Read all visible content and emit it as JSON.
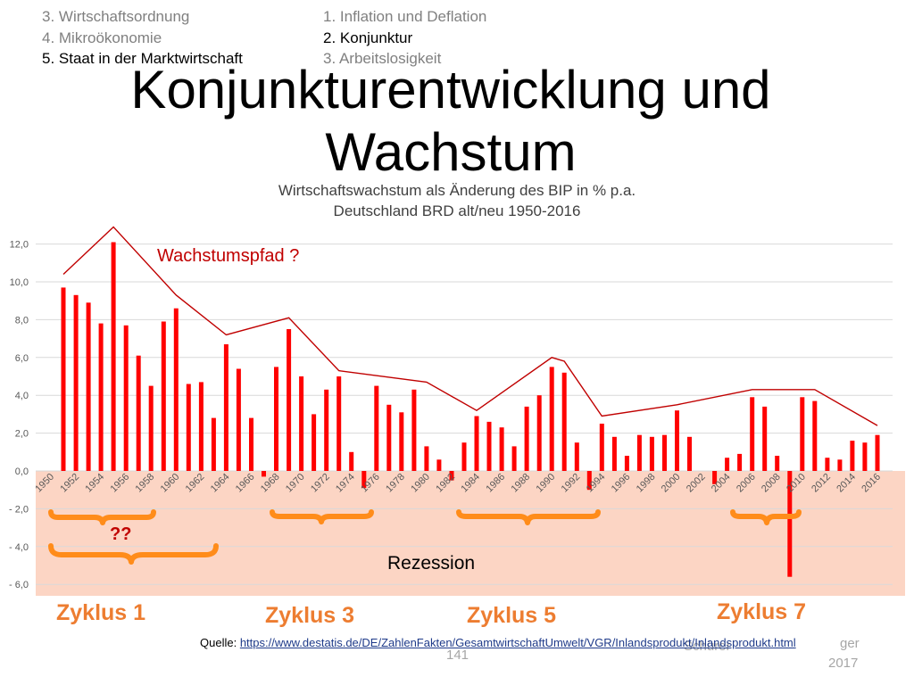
{
  "nav": {
    "left": [
      "3. Wirtschaftsordnung",
      "4. Mikroökonomie",
      "5. Staat in der Marktwirtschaft"
    ],
    "left_active": 2,
    "right": [
      "1. Inflation und Deflation",
      "2. Konjunktur",
      "3. Arbeitslosigkeit"
    ],
    "right_active": 1
  },
  "page_title": "Konjunkturentwicklung und Wachstum",
  "annotations": {
    "growth_path": "Wachstumspfad ?",
    "question": "??",
    "recession": "Rezession",
    "cycles": [
      "Zyklus 1",
      "Zyklus 3",
      "Zyklus 5",
      "Zyklus 7"
    ]
  },
  "footer": {
    "source_label": "Quelle:",
    "source_url": "https://www.destatis.de/DE/ZahlenFakten/GesamtwirtschaftUmwelt/VGR/Inlandsprodukt/Inlandsprodukt.html",
    "page_number": "141",
    "author_fragment": "Schürer",
    "author_tail": "ger",
    "year": "2017"
  },
  "colors": {
    "bar": "#ff0000",
    "trend_line": "#c00000",
    "recession_band": "#fcd5c4",
    "brace": "#ff8c1a",
    "cycle_label": "#ed7d31",
    "annotation_text": "#c00000"
  },
  "chart_data": {
    "type": "bar",
    "title": "Wirtschaftswachstum als Änderung des BIP in % p.a.",
    "subtitle": "Deutschland BRD alt/neu 1950-2016",
    "xlabel": "",
    "ylabel": "",
    "ylim": [
      -6,
      12
    ],
    "yticks": [
      "12,0",
      "10,0",
      "8,0",
      "6,0",
      "4,0",
      "2,0",
      "0,0",
      "- 2,0",
      "- 4,0",
      "- 6,0"
    ],
    "x": [
      1950,
      1951,
      1952,
      1953,
      1954,
      1955,
      1956,
      1957,
      1958,
      1959,
      1960,
      1961,
      1962,
      1963,
      1964,
      1965,
      1966,
      1967,
      1968,
      1969,
      1970,
      1971,
      1972,
      1973,
      1974,
      1975,
      1976,
      1977,
      1978,
      1979,
      1980,
      1981,
      1982,
      1983,
      1984,
      1985,
      1986,
      1987,
      1988,
      1989,
      1990,
      1991,
      1992,
      1993,
      1994,
      1995,
      1996,
      1997,
      1998,
      1999,
      2000,
      2001,
      2002,
      2003,
      2004,
      2005,
      2006,
      2007,
      2008,
      2009,
      2010,
      2011,
      2012,
      2013,
      2014,
      2015,
      2016
    ],
    "x_tick_labels": [
      "1950",
      "1952",
      "1954",
      "1956",
      "1958",
      "1960",
      "1962",
      "1964",
      "1966",
      "1968",
      "1970",
      "1972",
      "1974",
      "1976",
      "1978",
      "1980",
      "1982",
      "1984",
      "1986",
      "1988",
      "1990",
      "1992",
      "1994",
      "1996",
      "1998",
      "2000",
      "2002",
      "2004",
      "2006",
      "2008",
      "2010",
      "2012",
      "2014",
      "2016"
    ],
    "values": [
      0,
      9.7,
      9.3,
      8.9,
      7.8,
      12.1,
      7.7,
      6.1,
      4.5,
      7.9,
      8.6,
      4.6,
      4.7,
      2.8,
      6.7,
      5.4,
      2.8,
      -0.3,
      5.5,
      7.5,
      5.0,
      3.0,
      4.3,
      5.0,
      1.0,
      -0.9,
      4.5,
      3.5,
      3.1,
      4.3,
      1.3,
      0.6,
      -0.5,
      1.5,
      2.9,
      2.6,
      2.3,
      1.3,
      3.4,
      4.0,
      5.5,
      5.2,
      1.5,
      -1.0,
      2.5,
      1.8,
      0.8,
      1.9,
      1.8,
      1.9,
      3.2,
      1.8,
      0.0,
      -0.7,
      0.7,
      0.9,
      3.9,
      3.4,
      0.8,
      -5.6,
      3.9,
      3.7,
      0.7,
      0.6,
      1.6,
      1.5,
      1.9
    ],
    "trend_line": {
      "x": [
        1951,
        1955,
        1960,
        1964,
        1969,
        1973,
        1980,
        1984,
        1990,
        1991,
        1994,
        2000,
        2006,
        2011,
        2016
      ],
      "y": [
        10.4,
        12.9,
        9.3,
        7.2,
        8.1,
        5.3,
        4.7,
        3.2,
        6.0,
        5.8,
        2.9,
        3.5,
        4.3,
        4.3,
        2.4
      ]
    }
  }
}
